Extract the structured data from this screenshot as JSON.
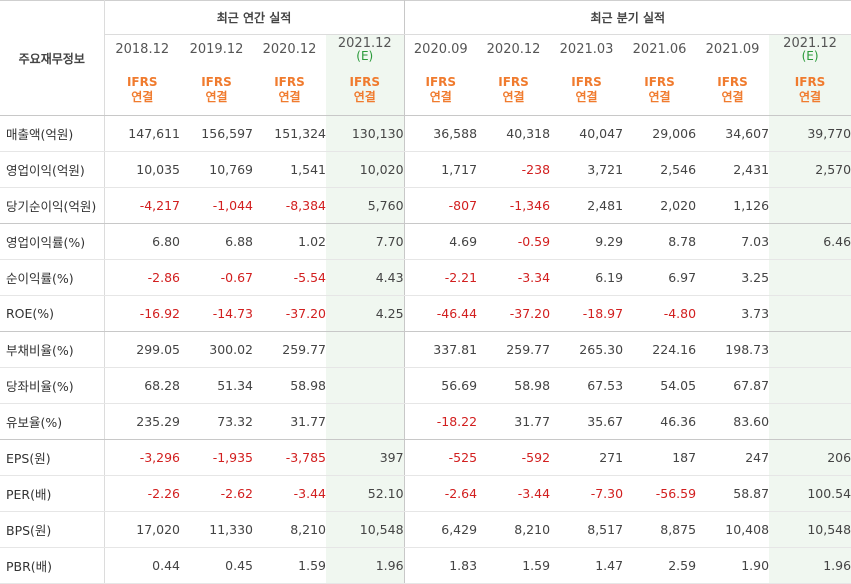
{
  "header": {
    "item_label": "주요재무정보",
    "annual_title": "최근 연간 실적",
    "quarterly_title": "최근 분기 실적"
  },
  "columns": [
    {
      "period": "2018.12",
      "est": "",
      "std": "IFRS",
      "basis": "연결"
    },
    {
      "period": "2019.12",
      "est": "",
      "std": "IFRS",
      "basis": "연결"
    },
    {
      "period": "2020.12",
      "est": "",
      "std": "IFRS",
      "basis": "연결"
    },
    {
      "period": "2021.12",
      "est": "(E)",
      "std": "IFRS",
      "basis": "연결"
    },
    {
      "period": "2020.09",
      "est": "",
      "std": "IFRS",
      "basis": "연결"
    },
    {
      "period": "2020.12",
      "est": "",
      "std": "IFRS",
      "basis": "연결"
    },
    {
      "period": "2021.03",
      "est": "",
      "std": "IFRS",
      "basis": "연결"
    },
    {
      "period": "2021.06",
      "est": "",
      "std": "IFRS",
      "basis": "연결"
    },
    {
      "period": "2021.09",
      "est": "",
      "std": "IFRS",
      "basis": "연결"
    },
    {
      "period": "2021.12",
      "est": "(E)",
      "std": "IFRS",
      "basis": "연결"
    }
  ],
  "rows": [
    {
      "label": "매출액(억원)",
      "values": [
        "147,611",
        "156,597",
        "151,324",
        "130,130",
        "36,588",
        "40,318",
        "40,047",
        "29,006",
        "34,607",
        "39,770"
      ]
    },
    {
      "label": "영업이익(억원)",
      "values": [
        "10,035",
        "10,769",
        "1,541",
        "10,020",
        "1,717",
        "-238",
        "3,721",
        "2,546",
        "2,431",
        "2,570"
      ]
    },
    {
      "label": "당기순이익(억원)",
      "values": [
        "-4,217",
        "-1,044",
        "-8,384",
        "5,760",
        "-807",
        "-1,346",
        "2,481",
        "2,020",
        "1,126",
        ""
      ]
    },
    {
      "label": "영업이익률(%)",
      "values": [
        "6.80",
        "6.88",
        "1.02",
        "7.70",
        "4.69",
        "-0.59",
        "9.29",
        "8.78",
        "7.03",
        "6.46"
      ]
    },
    {
      "label": "순이익률(%)",
      "values": [
        "-2.86",
        "-0.67",
        "-5.54",
        "4.43",
        "-2.21",
        "-3.34",
        "6.19",
        "6.97",
        "3.25",
        ""
      ]
    },
    {
      "label": "ROE(%)",
      "values": [
        "-16.92",
        "-14.73",
        "-37.20",
        "4.25",
        "-46.44",
        "-37.20",
        "-18.97",
        "-4.80",
        "3.73",
        ""
      ]
    },
    {
      "label": "부채비율(%)",
      "values": [
        "299.05",
        "300.02",
        "259.77",
        "",
        "337.81",
        "259.77",
        "265.30",
        "224.16",
        "198.73",
        ""
      ]
    },
    {
      "label": "당좌비율(%)",
      "values": [
        "68.28",
        "51.34",
        "58.98",
        "",
        "56.69",
        "58.98",
        "67.53",
        "54.05",
        "67.87",
        ""
      ]
    },
    {
      "label": "유보율(%)",
      "values": [
        "235.29",
        "73.32",
        "31.77",
        "",
        "-18.22",
        "31.77",
        "35.67",
        "46.36",
        "83.60",
        ""
      ]
    },
    {
      "label": "EPS(원)",
      "values": [
        "-3,296",
        "-1,935",
        "-3,785",
        "397",
        "-525",
        "-592",
        "271",
        "187",
        "247",
        "206"
      ]
    },
    {
      "label": "PER(배)",
      "values": [
        "-2.26",
        "-2.62",
        "-3.44",
        "52.10",
        "-2.64",
        "-3.44",
        "-7.30",
        "-56.59",
        "58.87",
        "100.54"
      ]
    },
    {
      "label": "BPS(원)",
      "values": [
        "17,020",
        "11,330",
        "8,210",
        "10,548",
        "6,429",
        "8,210",
        "8,517",
        "8,875",
        "10,408",
        "10,548"
      ]
    },
    {
      "label": "PBR(배)",
      "values": [
        "0.44",
        "0.45",
        "1.59",
        "1.96",
        "1.83",
        "1.59",
        "1.47",
        "2.59",
        "1.90",
        "1.96"
      ]
    }
  ],
  "colors": {
    "negative": "#d21f1f",
    "ifrs": "#f07b2e",
    "estimate": "#2a9a3a",
    "estimate_bg": "#f0f7f0"
  }
}
